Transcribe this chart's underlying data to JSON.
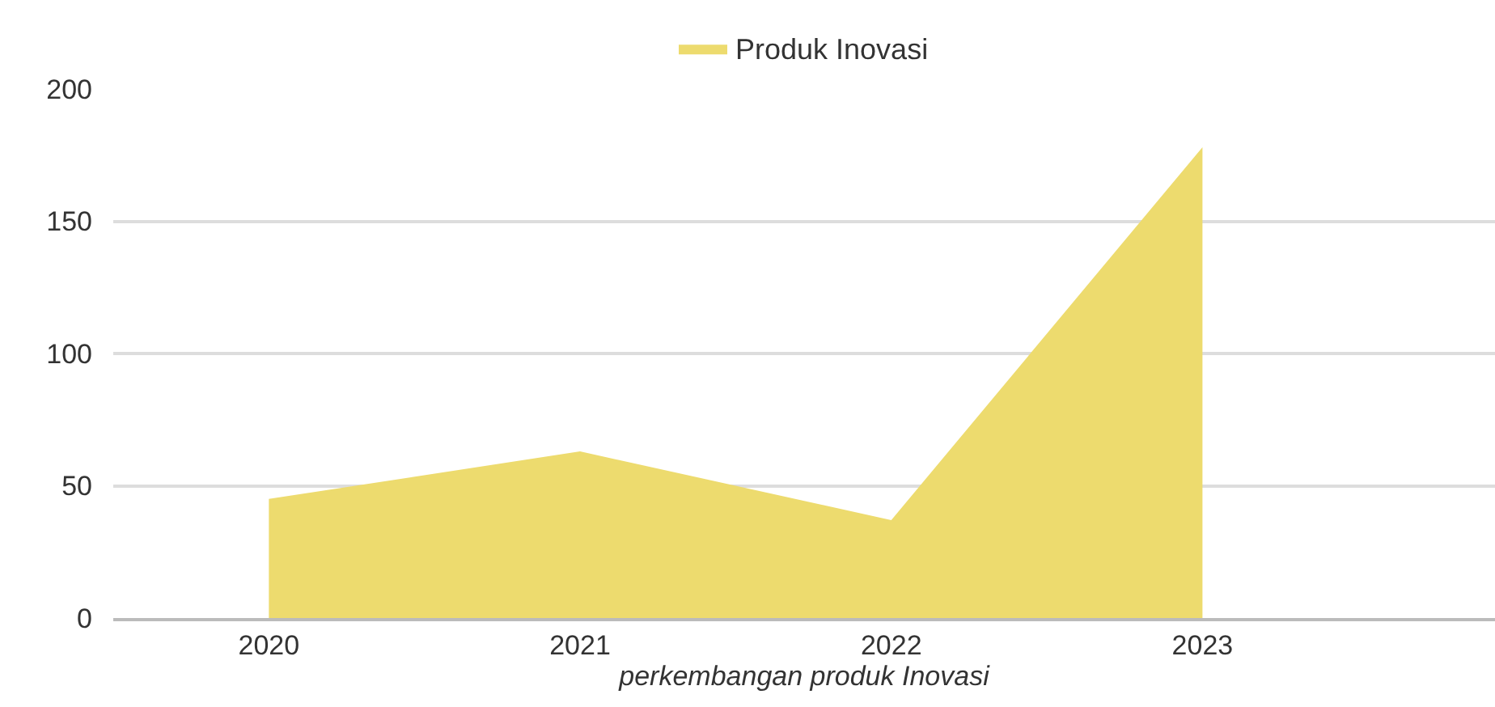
{
  "chart_data": {
    "type": "area",
    "xlabel": "perkembangan produk Inovasi",
    "categories": [
      "2020",
      "2021",
      "2022",
      "2023"
    ],
    "series": [
      {
        "name": "Produk Inovasi",
        "color": "#eddb6e",
        "values": [
          45,
          63,
          37,
          178
        ]
      }
    ],
    "ylim": [
      0,
      200
    ],
    "yticks": [
      0,
      50,
      100,
      150,
      200
    ],
    "grid": "y",
    "legend": "top"
  }
}
